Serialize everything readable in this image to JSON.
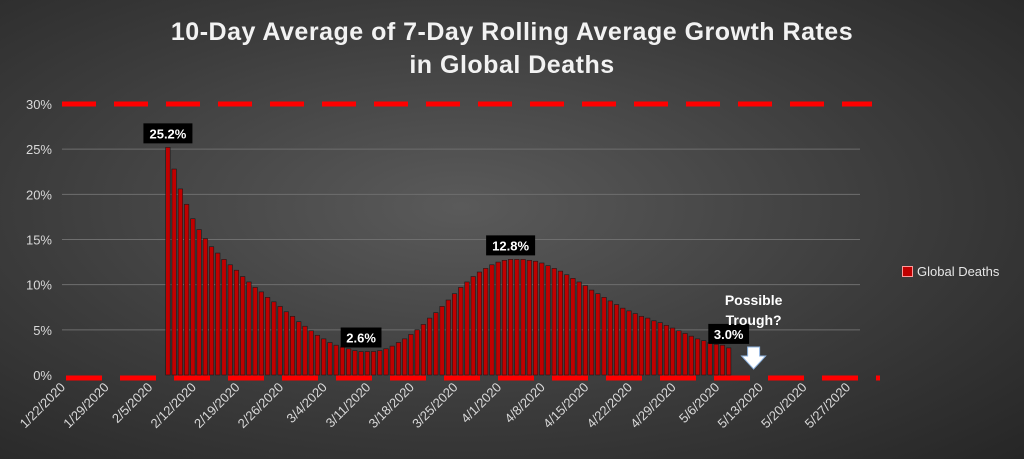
{
  "chart_data": {
    "type": "bar",
    "title": "10-Day Average of 7-Day Rolling Average Growth Rates in Global Deaths",
    "title_lines": [
      "10-Day Average of 7-Day Rolling Average Growth Rates",
      "in Global Deaths"
    ],
    "ylim": [
      0,
      30
    ],
    "y_ticks": [
      "0%",
      "5%",
      "10%",
      "15%",
      "20%",
      "25%",
      "30%"
    ],
    "y_tick_values": [
      0,
      5,
      10,
      15,
      20,
      25,
      30
    ],
    "x_start": "1/22/2020",
    "x_end": "5/31/2020",
    "x_tick_labels": [
      "1/22/2020",
      "1/29/2020",
      "2/5/2020",
      "2/12/2020",
      "2/19/2020",
      "2/26/2020",
      "3/4/2020",
      "3/11/2020",
      "3/18/2020",
      "3/25/2020",
      "4/1/2020",
      "4/8/2020",
      "4/15/2020",
      "4/22/2020",
      "4/29/2020",
      "5/6/2020",
      "5/13/2020",
      "5/20/2020",
      "5/27/2020"
    ],
    "grid": true,
    "legend_position": "right",
    "colors": {
      "bar_fill": "#c00000",
      "bar_edge": "#1a1a1a",
      "reference_line": "#ff0000",
      "grid": "#6e6e6e"
    },
    "reference_lines": [
      {
        "y": 30,
        "style": "dashed",
        "color": "#ff0000"
      },
      {
        "y": 0,
        "style": "dashed",
        "color": "#ff0000"
      }
    ],
    "series": [
      {
        "name": "Global Deaths",
        "x_first": "2/8/2020",
        "x_last": "5/8/2020",
        "values": [
          25.2,
          22.8,
          20.6,
          18.9,
          17.3,
          16.1,
          15.1,
          14.2,
          13.5,
          12.8,
          12.2,
          11.6,
          10.9,
          10.3,
          9.7,
          9.2,
          8.6,
          8.1,
          7.6,
          7.0,
          6.5,
          5.9,
          5.4,
          4.9,
          4.4,
          4.0,
          3.6,
          3.3,
          3.1,
          2.9,
          2.7,
          2.6,
          2.6,
          2.6,
          2.7,
          2.9,
          3.2,
          3.6,
          4.0,
          4.5,
          5.0,
          5.6,
          6.3,
          6.9,
          7.6,
          8.3,
          9.0,
          9.7,
          10.3,
          10.9,
          11.4,
          11.8,
          12.2,
          12.5,
          12.7,
          12.8,
          12.8,
          12.8,
          12.7,
          12.6,
          12.4,
          12.1,
          11.8,
          11.5,
          11.1,
          10.7,
          10.3,
          9.9,
          9.4,
          9.0,
          8.6,
          8.2,
          7.8,
          7.4,
          7.1,
          6.8,
          6.5,
          6.3,
          6.0,
          5.8,
          5.5,
          5.2,
          4.9,
          4.6,
          4.3,
          4.0,
          3.8,
          3.6,
          3.4,
          3.3,
          3.0
        ]
      }
    ],
    "data_labels": [
      {
        "text": "25.2%",
        "date": "2/8/2020",
        "value": 25.2
      },
      {
        "text": "2.6%",
        "date": "3/10/2020",
        "value": 2.6
      },
      {
        "text": "12.8%",
        "date": "4/3/2020",
        "value": 12.8
      },
      {
        "text": "3.0%",
        "date": "5/8/2020",
        "value": 3.0
      }
    ],
    "annotation": {
      "lines": [
        "Possible",
        "Trough?"
      ],
      "date": "5/12/2020",
      "arrow": "down",
      "arrow_color": "#ffffff"
    }
  }
}
